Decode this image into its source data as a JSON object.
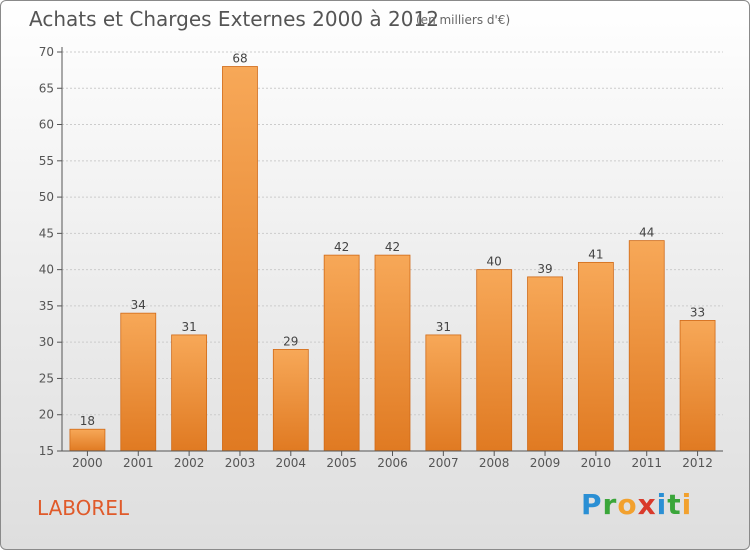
{
  "title": "Achats et Charges Externes 2000 à 2012",
  "subtitle": "(en milliers d'€)",
  "commune": "LABOREL",
  "logo": {
    "text": "Proxiti",
    "letters": [
      {
        "ch": "P",
        "color": "#2a8fd4"
      },
      {
        "ch": "r",
        "color": "#3aa63a"
      },
      {
        "ch": "o",
        "color": "#f2a12e"
      },
      {
        "ch": "x",
        "color": "#d93a2b"
      },
      {
        "ch": "i",
        "color": "#2a8fd4"
      },
      {
        "ch": "t",
        "color": "#3aa63a"
      },
      {
        "ch": "i",
        "color": "#f2a12e"
      }
    ]
  },
  "colors": {
    "bar_top": "#f7a858",
    "bar_bottom": "#e07a22",
    "bar_edge": "#d06a18",
    "grid": "#cccccc",
    "axis": "#555555"
  },
  "chart_data": {
    "type": "bar",
    "title": "Achats et Charges Externes 2000 à 2012",
    "categories": [
      "2000",
      "2001",
      "2002",
      "2003",
      "2004",
      "2005",
      "2006",
      "2007",
      "2008",
      "2009",
      "2010",
      "2011",
      "2012"
    ],
    "values": [
      18,
      34,
      31,
      68,
      29,
      42,
      42,
      31,
      40,
      39,
      41,
      44,
      33
    ],
    "ylim": [
      15,
      70
    ],
    "yticks": [
      15,
      20,
      25,
      30,
      35,
      40,
      45,
      50,
      55,
      60,
      65,
      70
    ],
    "grid": true,
    "xlabel": "",
    "ylabel": ""
  }
}
